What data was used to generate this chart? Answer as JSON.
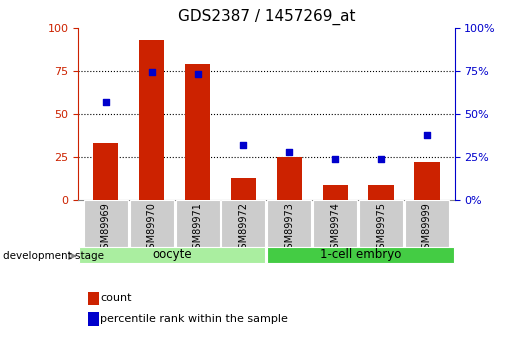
{
  "title": "GDS2387 / 1457269_at",
  "samples": [
    "GSM89969",
    "GSM89970",
    "GSM89971",
    "GSM89972",
    "GSM89973",
    "GSM89974",
    "GSM89975",
    "GSM89999"
  ],
  "counts": [
    33,
    93,
    79,
    13,
    25,
    9,
    9,
    22
  ],
  "percentiles": [
    57,
    74,
    73,
    32,
    28,
    24,
    24,
    38
  ],
  "bar_color": "#cc2200",
  "scatter_color": "#0000cc",
  "groups": [
    {
      "label": "oocyte",
      "start": 0,
      "end": 4,
      "color": "#aaeea0"
    },
    {
      "label": "1-cell embryo",
      "start": 4,
      "end": 8,
      "color": "#44cc44"
    }
  ],
  "ylim": [
    0,
    100
  ],
  "yticks": [
    0,
    25,
    50,
    75,
    100
  ],
  "title_fontsize": 11,
  "tick_fontsize": 8,
  "left_axis_color": "#cc2200",
  "right_axis_color": "#0000cc",
  "background_color": "#ffffff",
  "xticklabel_bg": "#cccccc",
  "stage_label": "development stage",
  "legend_count_label": "count",
  "legend_pct_label": "percentile rank within the sample"
}
